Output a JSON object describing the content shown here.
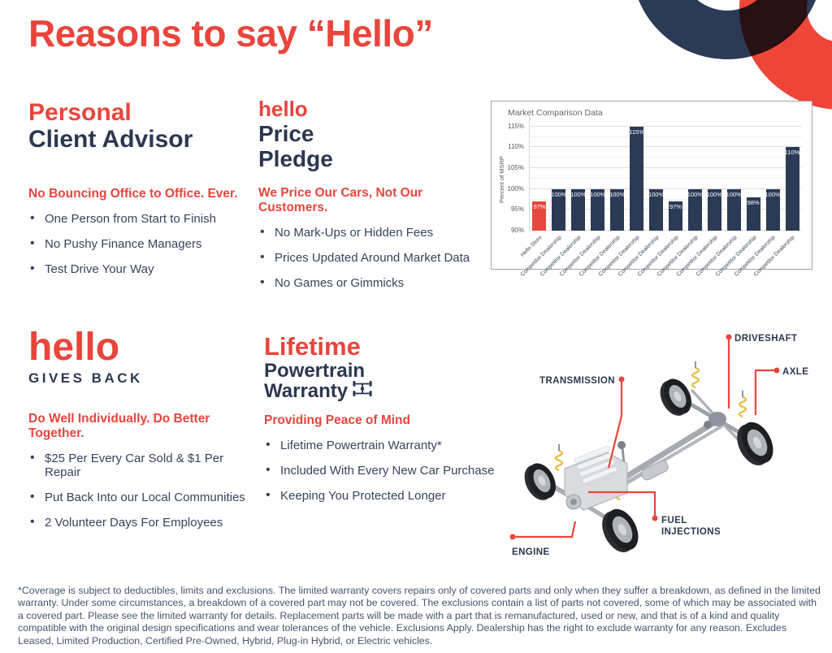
{
  "page": {
    "title": "Reasons to say “Hello”"
  },
  "colors": {
    "red": "#e8453c",
    "navy": "#2b3850",
    "bar_navy": "#2b3a55"
  },
  "icons": {
    "powertrain_icon": "drivetrain-top-view",
    "bullet": "•"
  },
  "sections": {
    "personal": {
      "title_line1": "Personal",
      "title_line2": "Client Advisor",
      "subhead": "No Bouncing Office to Office. Ever.",
      "bullets": [
        "One Person from Start to Finish",
        "No Pushy Finance Managers",
        "Test Drive Your Way"
      ]
    },
    "price": {
      "logo": "hello",
      "title_line1": "Price",
      "title_line2": "Pledge",
      "subhead": "We Price Our Cars, Not Our Customers.",
      "bullets": [
        "No Mark-Ups or Hidden Fees",
        "Prices Updated Around Market Data",
        "No Games or Gimmicks"
      ]
    },
    "gives_back": {
      "logo": "hello",
      "tagline": "GIVES BACK",
      "subhead": "Do Well Individually. Do Better Together.",
      "bullets": [
        "$25 Per Every Car Sold & $1 Per Repair",
        "Put Back Into our Local Communities",
        "2 Volunteer Days For Employees"
      ]
    },
    "warranty": {
      "title_line1": "Lifetime",
      "title_line2": "Powertrain",
      "title_line3": "Warranty",
      "subhead": "Providing Peace of Mind",
      "bullets": [
        "Lifetime Powertrain Warranty*",
        "Included With Every New Car Purchase",
        "Keeping You Protected Longer"
      ]
    }
  },
  "chart_data": {
    "type": "bar",
    "title": "Market Comparison Data",
    "ylabel": "Percent of MSRP",
    "ylim": [
      90,
      117.5
    ],
    "yticks_major": [
      90,
      95,
      100,
      105,
      110,
      115
    ],
    "ytick_step_minor": 2.5,
    "grid": true,
    "legend": "none",
    "categories": [
      "Hello Store",
      "Competitor Dealership",
      "Competitor Dealership",
      "Competitor Dealership",
      "Competitor Dealership",
      "Competitor Dealership",
      "Competitor Dealership",
      "Competitor Dealership",
      "Competitor Dealership",
      "Competitor Dealership",
      "Competitor Dealership",
      "Competitor Dealership",
      "Competitor Dealership",
      "Competitor Dealership"
    ],
    "values": [
      97,
      100,
      100,
      100,
      100,
      115,
      100,
      97,
      100,
      100,
      100,
      98,
      100,
      110
    ],
    "highlight_index": 0,
    "bar_color": "#2b3a55",
    "highlight_color": "#e8453c"
  },
  "diagram": {
    "labels": {
      "driveshaft": "DRIVESHAFT",
      "axle": "AXLE",
      "transmission": "TRANSMISSION",
      "fuel_line1": "FUEL",
      "fuel_line2": "INJECTIONS",
      "engine": "ENGINE"
    }
  },
  "footer": {
    "disclaimer": "*Coverage is subject to deductibles, limits and exclusions. The limited warranty covers repairs only of covered parts and only when they suffer a breakdown, as defined in the limited warranty. Under some circumstances, a breakdown of a covered part may not be covered. The exclusions contain a list of parts not covered, some of which may be associated with a covered part. Please see the limited warranty for details. Replacement parts will be made with a part that is remanufactured, used or new, and that is of a kind and quality compatible with the original design specifications and wear tolerances of the vehicle. Exclusions Apply. Dealership has the right to exclude warranty for any reason. Excludes Leased, Limited Production, Certified Pre-Owned, Hybrid, Plug-in Hybrid, or Electric vehicles."
  }
}
